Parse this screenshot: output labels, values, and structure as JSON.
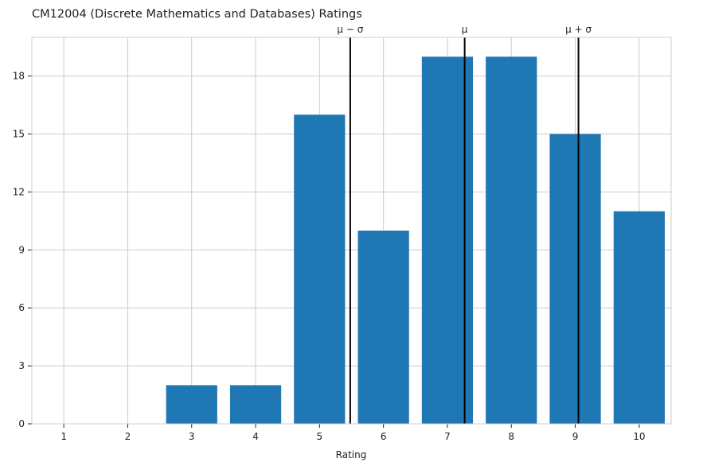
{
  "chart_data": {
    "type": "bar",
    "title": "CM12004 (Discrete Mathematics and Databases) Ratings",
    "xlabel": "Rating",
    "ylabel": "",
    "categories": [
      "1",
      "2",
      "3",
      "4",
      "5",
      "6",
      "7",
      "8",
      "9",
      "10"
    ],
    "values": [
      0,
      0,
      2,
      2,
      16,
      10,
      19,
      19,
      15,
      11
    ],
    "ylim": [
      0,
      20
    ],
    "yticks": [
      "0",
      "3",
      "6",
      "9",
      "12",
      "15",
      "18"
    ],
    "grid": true,
    "bar_color": "#1f77b4",
    "marker_color": "#000000",
    "markers": [
      {
        "label": "μ − σ",
        "x": 5.48
      },
      {
        "label": "μ",
        "x": 7.27
      },
      {
        "label": "μ + σ",
        "x": 9.05
      }
    ]
  }
}
